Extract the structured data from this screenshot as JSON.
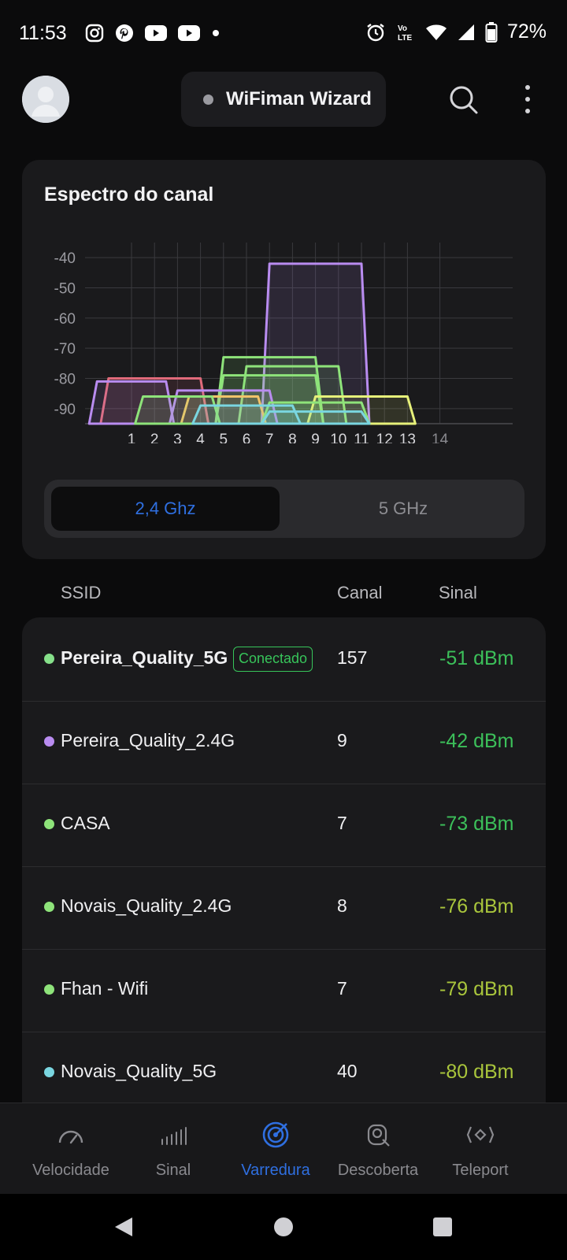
{
  "status_bar": {
    "time": "11:53",
    "battery": "72%",
    "app_icons": [
      "instagram-icon",
      "pinterest-icon",
      "youtube-icon",
      "youtube-icon",
      "dot-icon"
    ],
    "right_icons": [
      "alarm-icon",
      "volte-icon",
      "wifi-icon",
      "cell-signal-icon",
      "battery-icon"
    ],
    "volte_label": "Vo LTE"
  },
  "header": {
    "app_title": "WiFiman Wizard"
  },
  "spectrum": {
    "title": "Espectro do canal",
    "bands": {
      "active": "2,4 Ghz",
      "inactive": "5 GHz"
    }
  },
  "chart_data": {
    "type": "area",
    "yticks": [
      -40,
      -50,
      -60,
      -70,
      -80,
      -90
    ],
    "ylim": [
      -95,
      -35
    ],
    "xticks": [
      "1",
      "2",
      "3",
      "4",
      "5",
      "6",
      "7",
      "8",
      "9",
      "10",
      "11",
      "12",
      "13",
      "14"
    ],
    "series": [
      {
        "color": "#b98cf0",
        "center": 9,
        "dbm": -42,
        "width": 4
      },
      {
        "color": "#8ee37a",
        "center": 7,
        "dbm": -73,
        "width": 4
      },
      {
        "color": "#8ee37a",
        "center": 8,
        "dbm": -76,
        "width": 4
      },
      {
        "color": "#8ee37a",
        "center": 7,
        "dbm": -79,
        "width": 4
      },
      {
        "color": "#e06a7a",
        "center": 2,
        "dbm": -80,
        "width": 4
      },
      {
        "color": "#b98cf0",
        "center": 1,
        "dbm": -81,
        "width": 3
      },
      {
        "color": "#b98cf0",
        "center": 5,
        "dbm": -84,
        "width": 4
      },
      {
        "color": "#e6f07a",
        "center": 11,
        "dbm": -86,
        "width": 4
      },
      {
        "color": "#f0c36a",
        "center": 5,
        "dbm": -86,
        "width": 3
      },
      {
        "color": "#8ee37a",
        "center": 3,
        "dbm": -86,
        "width": 3
      },
      {
        "color": "#8ee37a",
        "center": 9,
        "dbm": -88,
        "width": 4
      },
      {
        "color": "#7ad6e0",
        "center": 6,
        "dbm": -89,
        "width": 4
      },
      {
        "color": "#7ad6e0",
        "center": 9,
        "dbm": -91,
        "width": 4
      }
    ]
  },
  "table": {
    "headers": {
      "ssid": "SSID",
      "channel": "Canal",
      "signal": "Sinal"
    },
    "rows": [
      {
        "ssid": "Pereira_Quality_5G",
        "badge": "Conectado",
        "channel": "157",
        "signal": "-51 dBm",
        "dot": "#86e08a",
        "signal_color": "#3cc05a",
        "bold": true
      },
      {
        "ssid": "Pereira_Quality_2.4G",
        "channel": "9",
        "signal": "-42 dBm",
        "dot": "#b98cf0",
        "signal_color": "#3cc05a"
      },
      {
        "ssid": "CASA",
        "channel": "7",
        "signal": "-73 dBm",
        "dot": "#8ee37a",
        "signal_color": "#3cc05a"
      },
      {
        "ssid": "Novais_Quality_2.4G",
        "channel": "8",
        "signal": "-76 dBm",
        "dot": "#8ee37a",
        "signal_color": "#a9c53c"
      },
      {
        "ssid": "Fhan - Wifi",
        "channel": "7",
        "signal": "-79 dBm",
        "dot": "#8ee37a",
        "signal_color": "#a9c53c"
      },
      {
        "ssid": "Novais_Quality_5G",
        "channel": "40",
        "signal": "-80 dBm",
        "dot": "#7ad6e0",
        "signal_color": "#a9c53c"
      }
    ]
  },
  "bottom_nav": [
    {
      "label": "Velocidade",
      "icon": "speedometer-icon"
    },
    {
      "label": "Sinal",
      "icon": "signal-bars-icon"
    },
    {
      "label": "Varredura",
      "icon": "radar-icon",
      "active": true
    },
    {
      "label": "Descoberta",
      "icon": "discovery-icon"
    },
    {
      "label": "Teleport",
      "icon": "teleport-icon"
    }
  ]
}
